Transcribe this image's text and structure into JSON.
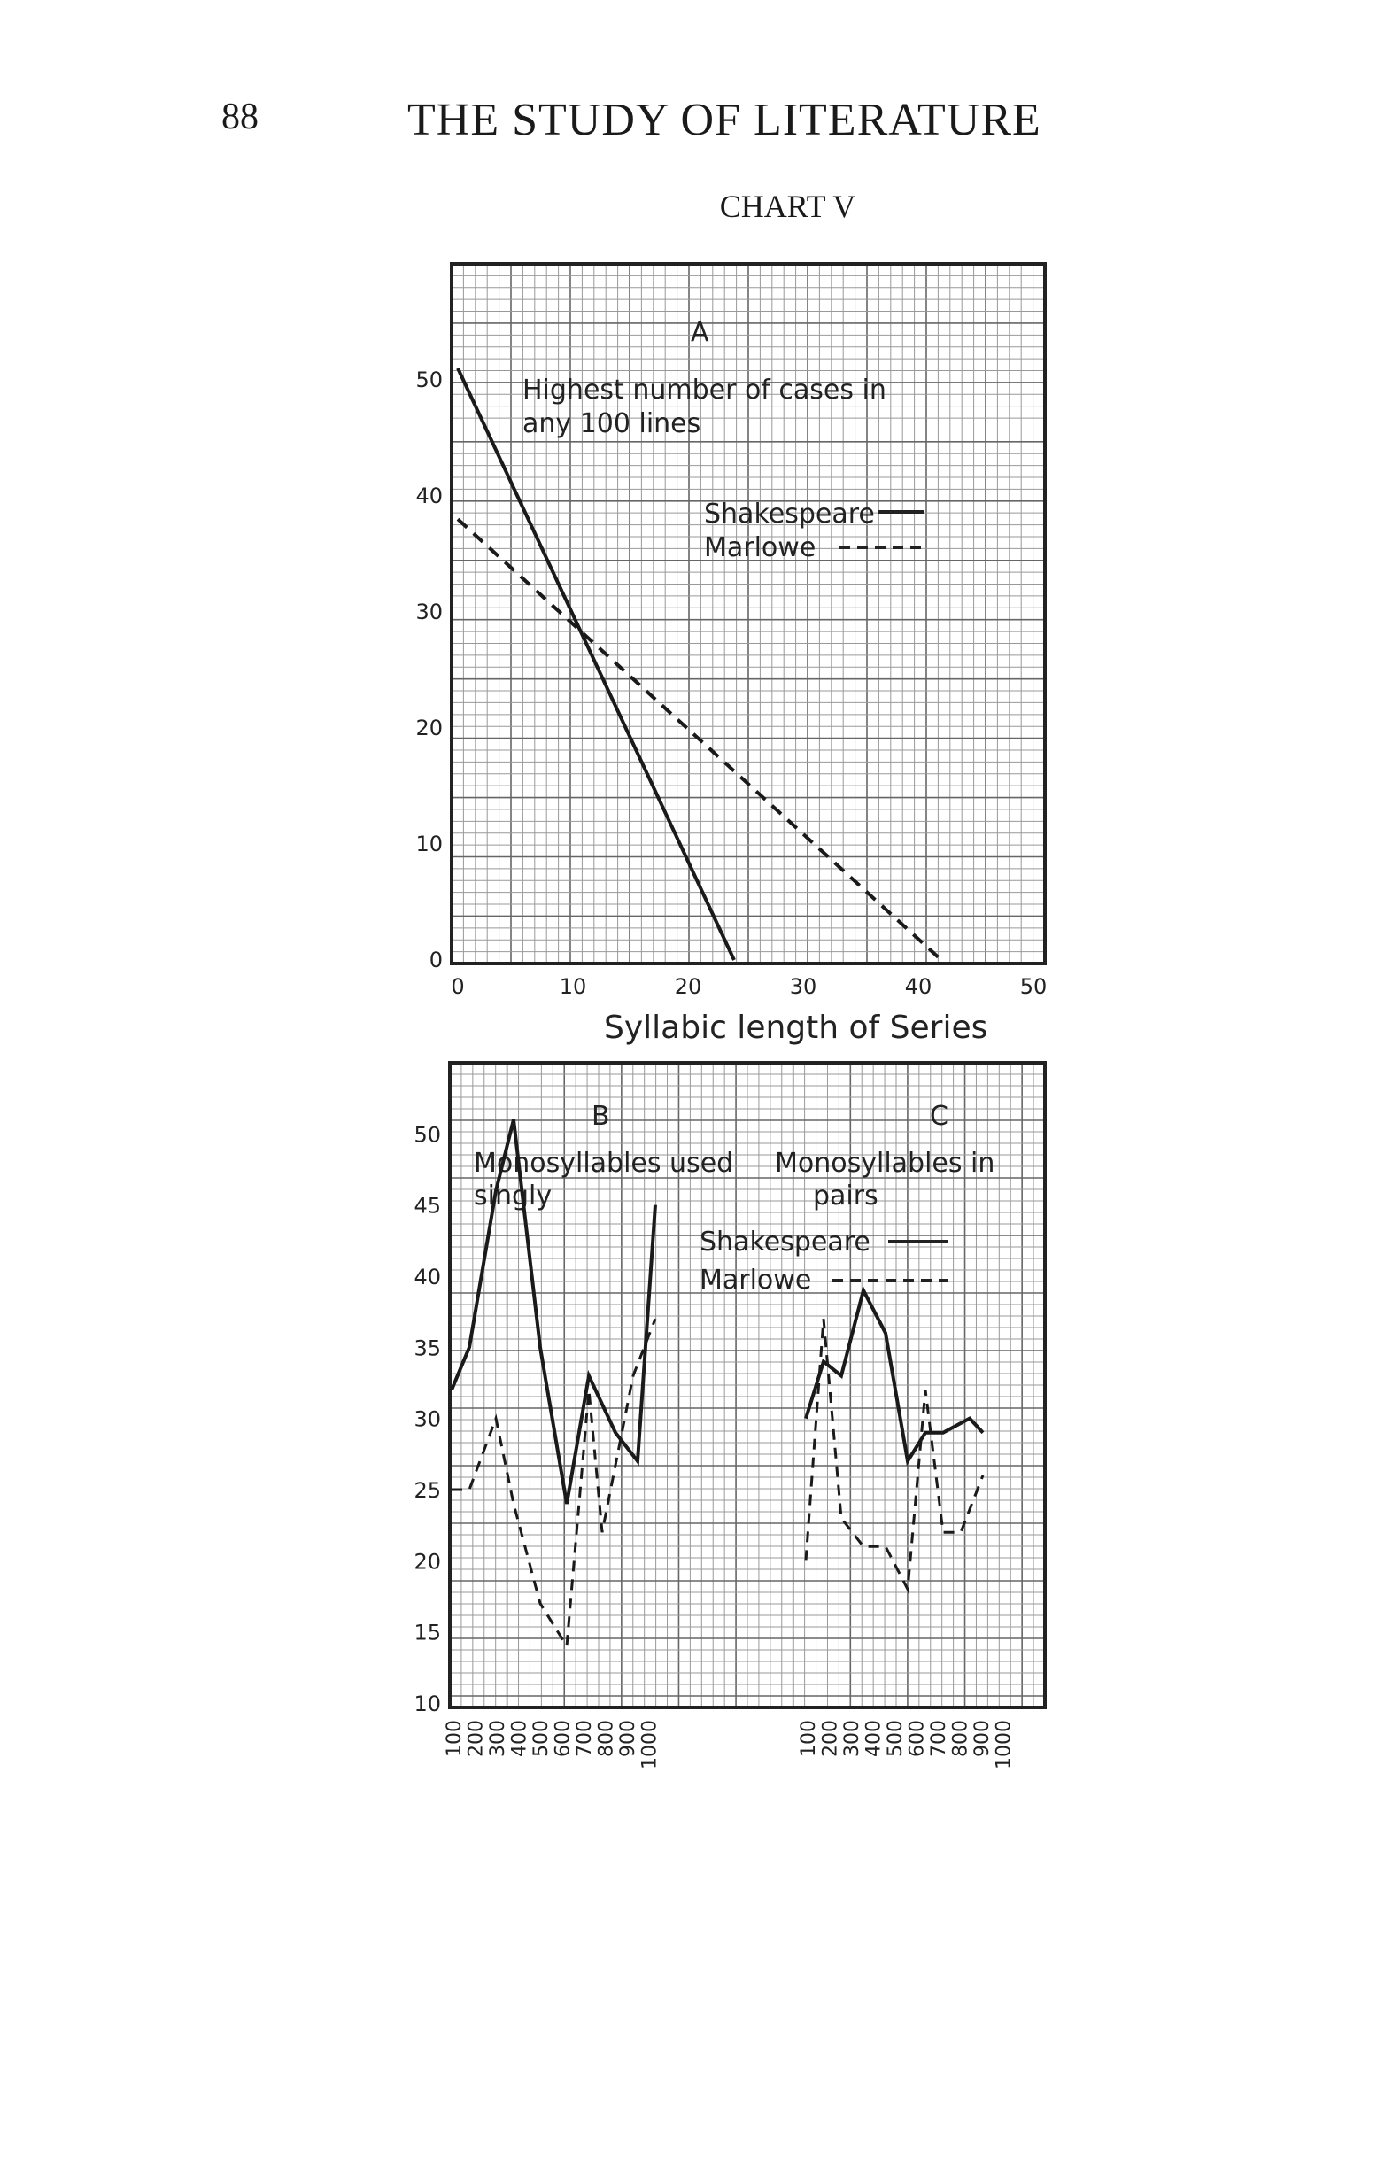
{
  "page": {
    "number": "88",
    "running_head": "THE STUDY OF LITERATURE",
    "chart_title": "CHART V"
  },
  "chart_data": [
    {
      "id": "A",
      "type": "line",
      "panel_label": "A",
      "annotation": [
        "Highest number of cases in",
        "any 100 lines"
      ],
      "xlabel": "Syllabic length of Series",
      "ylabel": "",
      "xlim": [
        0,
        50
      ],
      "ylim": [
        0,
        50
      ],
      "x_ticks": [
        "0",
        "10",
        "20",
        "30",
        "40",
        "50"
      ],
      "y_ticks": [
        "0",
        "10",
        "20",
        "30",
        "40",
        "50"
      ],
      "grid": true,
      "legend": [
        {
          "label": "Shakespeare",
          "style": "solid"
        },
        {
          "label": "Marlowe",
          "style": "dashed"
        }
      ],
      "series": [
        {
          "name": "Shakespeare",
          "style": "solid",
          "points": [
            [
              0,
              51
            ],
            [
              24,
              0
            ]
          ]
        },
        {
          "name": "Marlowe",
          "style": "dashed",
          "points": [
            [
              0,
              38
            ],
            [
              42,
              0
            ]
          ]
        }
      ]
    },
    {
      "id": "B",
      "type": "line",
      "panel_label": "B",
      "annotation": [
        "Monosyllables used",
        "singly"
      ],
      "x": [
        "100",
        "200",
        "300",
        "400",
        "500",
        "600",
        "700",
        "800",
        "900",
        "1000"
      ],
      "ylim": [
        10,
        55
      ],
      "y_ticks": [
        "10",
        "15",
        "20",
        "25",
        "30",
        "35",
        "40",
        "45",
        "50"
      ],
      "grid": true,
      "series": [
        {
          "name": "Shakespeare",
          "style": "solid",
          "points": [
            [
              0,
              32
            ],
            [
              40,
              35
            ],
            [
              100,
              46
            ],
            [
              140,
              51
            ],
            [
              200,
              35
            ],
            [
              260,
              24
            ],
            [
              310,
              33
            ],
            [
              370,
              29
            ],
            [
              420,
              27
            ],
            [
              460,
              45
            ]
          ]
        },
        {
          "name": "Marlowe",
          "style": "dashed",
          "points": [
            [
              0,
              25
            ],
            [
              40,
              25
            ],
            [
              100,
              30
            ],
            [
              140,
              24
            ],
            [
              200,
              17
            ],
            [
              260,
              14
            ],
            [
              310,
              32
            ],
            [
              340,
              22
            ],
            [
              410,
              33
            ],
            [
              460,
              37
            ]
          ]
        }
      ]
    },
    {
      "id": "C",
      "type": "line",
      "panel_label": "C",
      "annotation": [
        "Monosyllables in",
        "pairs"
      ],
      "x": [
        "100",
        "200",
        "300",
        "400",
        "500",
        "600",
        "700",
        "800",
        "900",
        "1000"
      ],
      "ylim": [
        10,
        55
      ],
      "grid": true,
      "legend": [
        {
          "label": "Shakespeare",
          "style": "solid"
        },
        {
          "label": "Marlowe",
          "style": "dashed"
        }
      ],
      "series": [
        {
          "name": "Shakespeare",
          "style": "solid",
          "points": [
            [
              800,
              30
            ],
            [
              840,
              34
            ],
            [
              880,
              33
            ],
            [
              930,
              39
            ],
            [
              980,
              36
            ],
            [
              1030,
              27
            ],
            [
              1070,
              29
            ],
            [
              1110,
              29
            ],
            [
              1170,
              30
            ],
            [
              1200,
              29
            ]
          ]
        },
        {
          "name": "Marlowe",
          "style": "dashed",
          "points": [
            [
              800,
              20
            ],
            [
              840,
              37
            ],
            [
              880,
              23
            ],
            [
              930,
              21
            ],
            [
              980,
              21
            ],
            [
              1030,
              18
            ],
            [
              1070,
              32
            ],
            [
              1110,
              22
            ],
            [
              1150,
              22
            ],
            [
              1200,
              26
            ]
          ]
        }
      ]
    }
  ]
}
